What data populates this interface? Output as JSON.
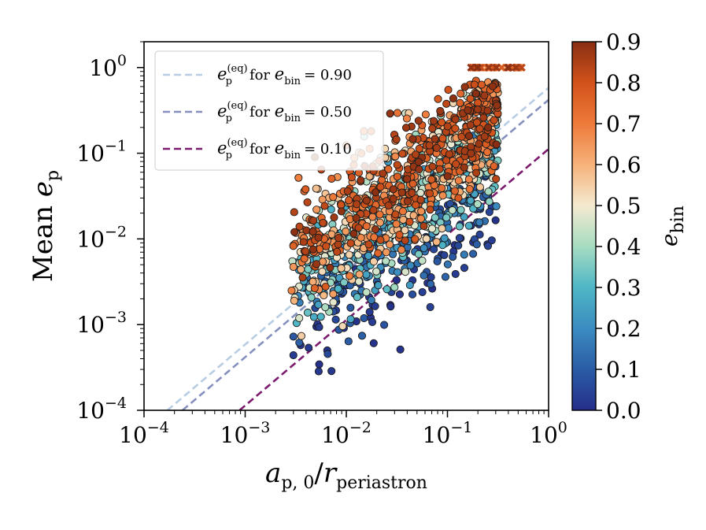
{
  "chart_data": {
    "type": "scatter",
    "title": "",
    "xlabel": "a_p,0 / r_periastron",
    "ylabel": "Mean e_p",
    "xscale": "log",
    "yscale": "log",
    "xlim": [
      0.0001,
      1
    ],
    "ylim": [
      0.0001,
      2
    ],
    "x_ticks": [
      {
        "value": 0.0001,
        "base": "10",
        "exp": "−4"
      },
      {
        "value": 0.001,
        "base": "10",
        "exp": "−3"
      },
      {
        "value": 0.01,
        "base": "10",
        "exp": "−2"
      },
      {
        "value": 0.1,
        "base": "10",
        "exp": "−1"
      },
      {
        "value": 1,
        "base": "10",
        "exp": "0"
      }
    ],
    "y_ticks": [
      {
        "value": 0.0001,
        "base": "10",
        "exp": "−4"
      },
      {
        "value": 0.001,
        "base": "10",
        "exp": "−3"
      },
      {
        "value": 0.01,
        "base": "10",
        "exp": "−2"
      },
      {
        "value": 0.1,
        "base": "10",
        "exp": "−1"
      },
      {
        "value": 1,
        "base": "10",
        "exp": "0"
      }
    ],
    "legend_position": "top-left",
    "series": [
      {
        "name": "e_p^(eq) for e_bin = 0.90",
        "style": "dashed",
        "color": "#b7cde3",
        "points": [
          [
            0.00017,
            0.0001
          ],
          [
            1,
            0.58
          ]
        ]
      },
      {
        "name": "e_p^(eq) for e_bin = 0.50",
        "style": "dashed",
        "color": "#8690bf",
        "points": [
          [
            0.00024,
            0.0001
          ],
          [
            1,
            0.42
          ]
        ]
      },
      {
        "name": "e_p^(eq) for e_bin = 0.10",
        "style": "dashed",
        "color": "#7b1a6e",
        "points": [
          [
            0.00088,
            0.0001
          ],
          [
            1,
            0.112
          ]
        ]
      }
    ],
    "legend_entries": [
      {
        "sup": "(eq)",
        "text": "for",
        "value": "= 0.90"
      },
      {
        "sup": "(eq)",
        "text": "for",
        "value": "= 0.50"
      },
      {
        "sup": "(eq)",
        "text": "for",
        "value": "= 0.10"
      }
    ],
    "scatter_summary": "several thousand simulated systems colored by e_bin; points follow e_p roughly proportional to a_p,0/r_periastron, with high-e_bin systems at larger e_p; systems with e_bin above 0.8 saturate at e_p = 1 (x markers) for x between 0.17 and 0.55",
    "colorbar": {
      "label": "e_bin",
      "min": 0.0,
      "max": 0.9,
      "ticks": [
        "0.0",
        "0.1",
        "0.2",
        "0.3",
        "0.4",
        "0.5",
        "0.6",
        "0.7",
        "0.8",
        "0.9"
      ],
      "colormap": [
        "#262f8b",
        "#2a5ca5",
        "#3b8cc0",
        "#4fb6c6",
        "#a6dcc1",
        "#f4ead0",
        "#f6b27a",
        "#ee7a3a",
        "#d2521b",
        "#882e12"
      ]
    }
  }
}
